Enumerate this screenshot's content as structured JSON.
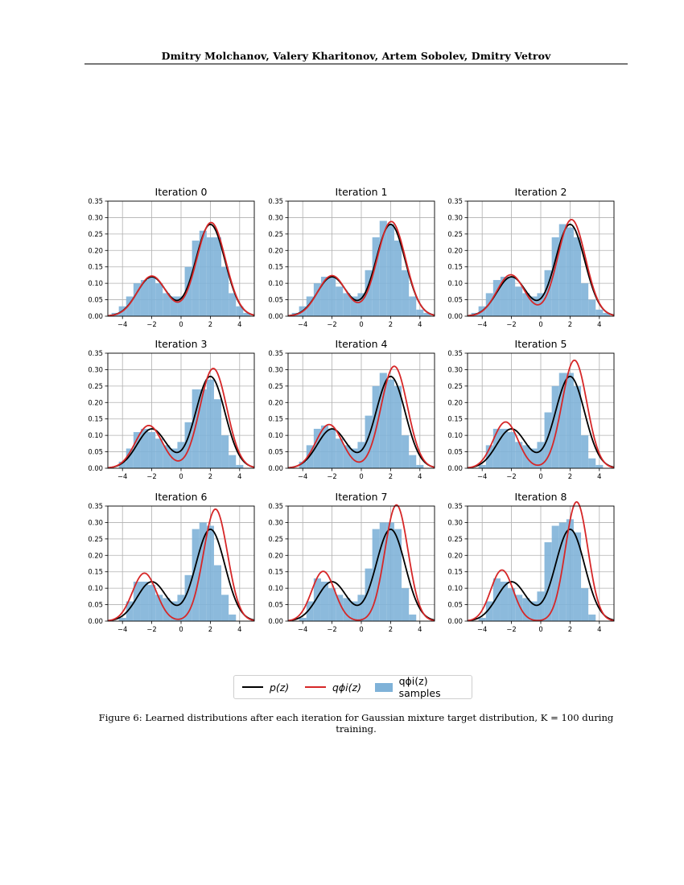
{
  "header": {
    "authors": "Dmitry Molchanov, Valery Kharitonov, Artem Sobolev, Dmitry Vetrov"
  },
  "figure": {
    "caption": "Figure 6: Learned distributions after each iteration for Gaussian mixture target distribution, K = 100 during training.",
    "legend": {
      "p_label": "p(z)",
      "q_label": "qϕi(z)",
      "samples_label": "qϕi(z) samples"
    },
    "colors": {
      "target": "#000000",
      "learned": "#d62728",
      "samples": "#7fb2d8",
      "grid": "#b0b0b0"
    }
  },
  "chart_data": {
    "type": "histogram+line",
    "shared_axes": {
      "xlim": [
        -5,
        5
      ],
      "ylim": [
        0,
        0.35
      ],
      "xticks": [
        "−4",
        "−2",
        "0",
        "2",
        "4"
      ],
      "xtick_values": [
        -4,
        -2,
        0,
        2,
        4
      ],
      "yticks": [
        "0.00",
        "0.05",
        "0.10",
        "0.15",
        "0.20",
        "0.25",
        "0.30",
        "0.35"
      ],
      "ytick_values": [
        0,
        0.05,
        0.1,
        0.15,
        0.2,
        0.25,
        0.3,
        0.35
      ],
      "grid": true
    },
    "target_p": {
      "components": [
        {
          "weight": 0.3,
          "mean": -2,
          "sd": 1.0
        },
        {
          "weight": 0.7,
          "mean": 2,
          "sd": 1.0
        }
      ]
    },
    "panels": [
      {
        "title": "Iteration 0",
        "q": [
          {
            "w": 0.3,
            "m": -2.0,
            "s": 0.98
          },
          {
            "w": 0.7,
            "m": 2.05,
            "s": 0.98
          }
        ],
        "hist": [
          0.01,
          0.03,
          0.06,
          0.1,
          0.11,
          0.12,
          0.1,
          0.07,
          0.06,
          0.06,
          0.15,
          0.23,
          0.26,
          0.24,
          0.24,
          0.15,
          0.07,
          0.03,
          0.01
        ]
      },
      {
        "title": "Iteration 1",
        "q": [
          {
            "w": 0.3,
            "m": -2.0,
            "s": 0.97
          },
          {
            "w": 0.7,
            "m": 2.05,
            "s": 0.97
          }
        ],
        "hist": [
          0.01,
          0.03,
          0.06,
          0.1,
          0.12,
          0.12,
          0.09,
          0.07,
          0.06,
          0.07,
          0.14,
          0.24,
          0.29,
          0.28,
          0.23,
          0.14,
          0.06,
          0.02,
          0.01
        ]
      },
      {
        "title": "Iteration 2",
        "q": [
          {
            "w": 0.3,
            "m": -2.05,
            "s": 0.95
          },
          {
            "w": 0.7,
            "m": 2.1,
            "s": 0.95
          }
        ],
        "hist": [
          0.01,
          0.03,
          0.07,
          0.11,
          0.12,
          0.12,
          0.09,
          0.07,
          0.06,
          0.07,
          0.14,
          0.24,
          0.28,
          0.27,
          0.24,
          0.1,
          0.05,
          0.02,
          0.01
        ]
      },
      {
        "title": "Iteration 3",
        "q": [
          {
            "w": 0.3,
            "m": -2.2,
            "s": 0.92
          },
          {
            "w": 0.7,
            "m": 2.2,
            "s": 0.92
          }
        ],
        "hist": [
          0.0,
          0.02,
          0.06,
          0.11,
          0.12,
          0.11,
          0.09,
          0.07,
          0.06,
          0.08,
          0.14,
          0.24,
          0.24,
          0.27,
          0.21,
          0.1,
          0.04,
          0.01,
          0.0
        ]
      },
      {
        "title": "Iteration 4",
        "q": [
          {
            "w": 0.3,
            "m": -2.2,
            "s": 0.9
          },
          {
            "w": 0.7,
            "m": 2.25,
            "s": 0.9
          }
        ],
        "hist": [
          0.0,
          0.02,
          0.07,
          0.12,
          0.13,
          0.12,
          0.09,
          0.07,
          0.06,
          0.08,
          0.16,
          0.25,
          0.29,
          0.27,
          0.25,
          0.1,
          0.04,
          0.01,
          0.0
        ]
      },
      {
        "title": "Iteration 5",
        "q": [
          {
            "w": 0.3,
            "m": -2.4,
            "s": 0.85
          },
          {
            "w": 0.7,
            "m": 2.3,
            "s": 0.85
          }
        ],
        "hist": [
          0.0,
          0.01,
          0.07,
          0.12,
          0.12,
          0.11,
          0.08,
          0.07,
          0.06,
          0.08,
          0.17,
          0.25,
          0.29,
          0.29,
          0.25,
          0.1,
          0.03,
          0.01,
          0.0
        ]
      },
      {
        "title": "Iteration 6",
        "q": [
          {
            "w": 0.3,
            "m": -2.5,
            "s": 0.82
          },
          {
            "w": 0.7,
            "m": 2.35,
            "s": 0.82
          }
        ],
        "hist": [
          0.0,
          0.01,
          0.06,
          0.12,
          0.12,
          0.11,
          0.08,
          0.07,
          0.06,
          0.08,
          0.14,
          0.28,
          0.3,
          0.29,
          0.17,
          0.08,
          0.02,
          0.0,
          0.0
        ]
      },
      {
        "title": "Iteration 7",
        "q": [
          {
            "w": 0.3,
            "m": -2.6,
            "s": 0.79
          },
          {
            "w": 0.7,
            "m": 2.4,
            "s": 0.79
          }
        ],
        "hist": [
          0.0,
          0.01,
          0.06,
          0.13,
          0.12,
          0.1,
          0.08,
          0.07,
          0.06,
          0.08,
          0.16,
          0.28,
          0.3,
          0.3,
          0.28,
          0.1,
          0.02,
          0.0,
          0.0
        ]
      },
      {
        "title": "Iteration 8",
        "q": [
          {
            "w": 0.3,
            "m": -2.65,
            "s": 0.77
          },
          {
            "w": 0.7,
            "m": 2.45,
            "s": 0.77
          }
        ],
        "hist": [
          0.0,
          0.01,
          0.06,
          0.13,
          0.12,
          0.1,
          0.08,
          0.07,
          0.06,
          0.09,
          0.24,
          0.29,
          0.3,
          0.31,
          0.27,
          0.1,
          0.02,
          0.0,
          0.0
        ]
      }
    ]
  }
}
